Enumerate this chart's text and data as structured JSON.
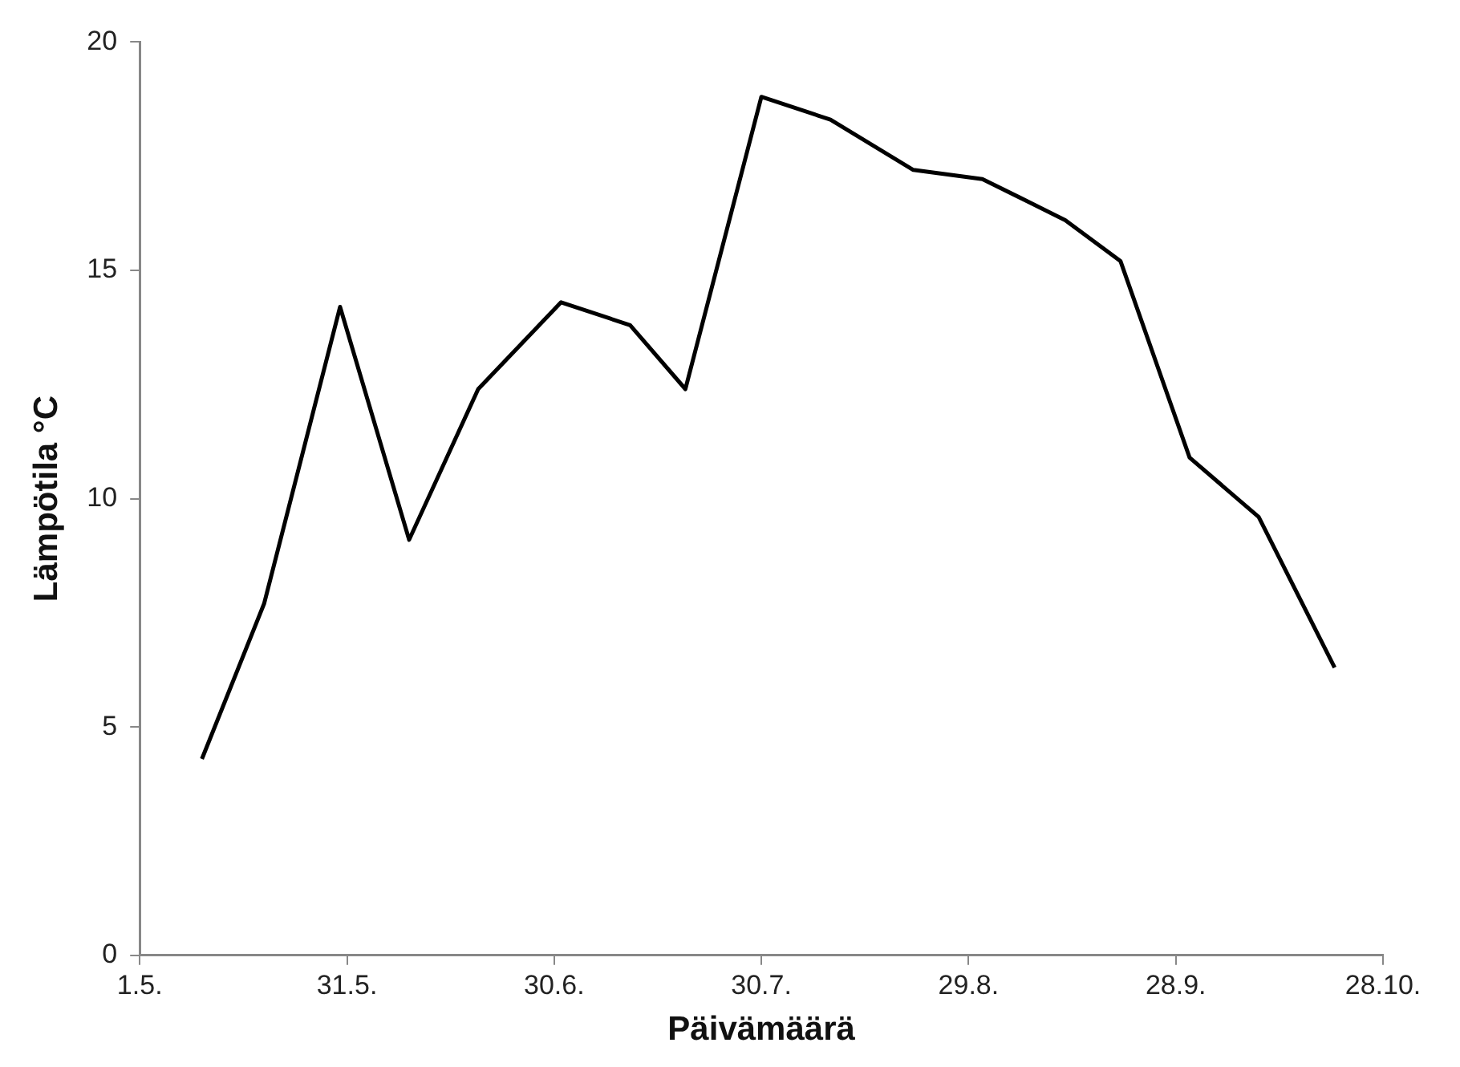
{
  "chart_data": {
    "type": "line",
    "xlabel": "Päivämäärä",
    "ylabel": "Lämpötila °C",
    "x": [
      "--05-10",
      "--05-19",
      "--05-30",
      "--06-09",
      "--06-19",
      "--07-01",
      "--07-11",
      "--07-19",
      "--07-30",
      "--08-09",
      "--08-21",
      "--08-31",
      "--09-12",
      "--09-20",
      "--09-30",
      "--10-10",
      "--10-21"
    ],
    "series": [
      {
        "color": "#000000",
        "values": [
          4.3,
          7.7,
          14.2,
          9.1,
          12.4,
          14.3,
          13.8,
          12.4,
          18.8,
          18.3,
          17.2,
          17.0,
          16.1,
          15.2,
          10.9,
          9.6,
          6.3
        ]
      }
    ],
    "xlim": [
      "--05-01",
      "--10-28"
    ],
    "xticks": [
      {
        "value": "--05-01",
        "label": "1.5."
      },
      {
        "value": "--05-31",
        "label": "31.5."
      },
      {
        "value": "--06-30",
        "label": "30.6."
      },
      {
        "value": "--07-30",
        "label": "30.7."
      },
      {
        "value": "--08-29",
        "label": "29.8."
      },
      {
        "value": "--09-28",
        "label": "28.9."
      },
      {
        "value": "--10-28",
        "label": "28.10."
      }
    ],
    "ylim": [
      0,
      20
    ],
    "yticks": [
      0,
      5,
      10,
      15,
      20
    ],
    "grid": false,
    "legend": false,
    "marker": "none",
    "line_style": "solid"
  }
}
